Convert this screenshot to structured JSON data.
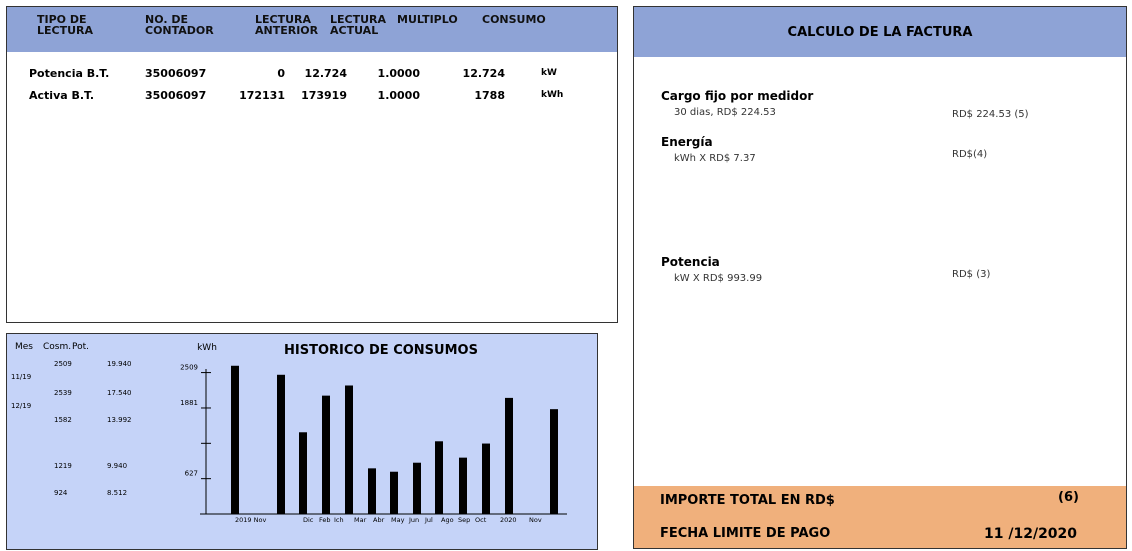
{
  "lecturas": {
    "headers": [
      [
        "TIPO DE",
        "LECTURA"
      ],
      [
        "NO. DE",
        "CONTADOR"
      ],
      [
        "LECTURA",
        "ANTERIOR"
      ],
      [
        "LECTURA",
        "ACTUAL"
      ],
      [
        "MULTIPLO"
      ],
      [
        "CONSUMO"
      ]
    ],
    "rows": [
      [
        "Potencia B.T.",
        "35006097",
        "0",
        "12.724",
        "1.0000",
        "12.724",
        "kW"
      ],
      [
        "Activa B.T.",
        "35006097",
        "172131",
        "173919",
        "1.0000",
        "1788",
        "kWh"
      ]
    ]
  },
  "factura": {
    "title": "CALCULO DE LA FACTURA",
    "items": [
      {
        "label": "Cargo fijo por medidor",
        "detail": "30 dias, RD$ 224.53",
        "amount": "RD$ 224.53 (5)"
      },
      {
        "label": "Energía",
        "detail": "kWh X RD$ 7.37",
        "amount": "RD$(4)"
      },
      {
        "label": "Potencia",
        "detail": "kW X RD$ 993.99",
        "amount": "RD$ (3)"
      }
    ],
    "total": {
      "label": "IMPORTE TOTAL EN RD$",
      "value": "(6)"
    },
    "fecha": {
      "label": "FECHA LIMITE DE PAGO",
      "value": "11 /12/2020"
    }
  },
  "historico": {
    "headers": [
      "Mes",
      "Cosm.",
      "Pot."
    ],
    "months": [
      "11/19",
      "12/19"
    ],
    "rows": [
      [
        "2509",
        "19.940"
      ],
      [
        "2539",
        "17.540"
      ],
      [
        "1582",
        "13.992"
      ],
      [
        "1219",
        "9.940"
      ],
      [
        "924",
        "8.512"
      ]
    ]
  },
  "chart_data": {
    "type": "bar",
    "title": "HISTORICO DE CONSUMOS",
    "y_label": "kWh",
    "categories": [
      null,
      null,
      null,
      null,
      null,
      null,
      null,
      null,
      null,
      null,
      null,
      null,
      null
    ],
    "x_labels": [
      "2019 Nov",
      "Dic",
      "Feb",
      "Ich",
      "Mar",
      "Abr",
      "May",
      "Jun",
      "Jul",
      "Ago",
      "Sep",
      "Oct",
      "2020",
      "Nov"
    ],
    "values": [
      2630,
      2470,
      1450,
      2100,
      2280,
      810,
      750,
      910,
      1290,
      1000,
      1250,
      2060,
      1860
    ],
    "color": "#000000",
    "ylim": [
      0,
      2750
    ],
    "yticks": [
      627,
      1881,
      2509
    ]
  }
}
